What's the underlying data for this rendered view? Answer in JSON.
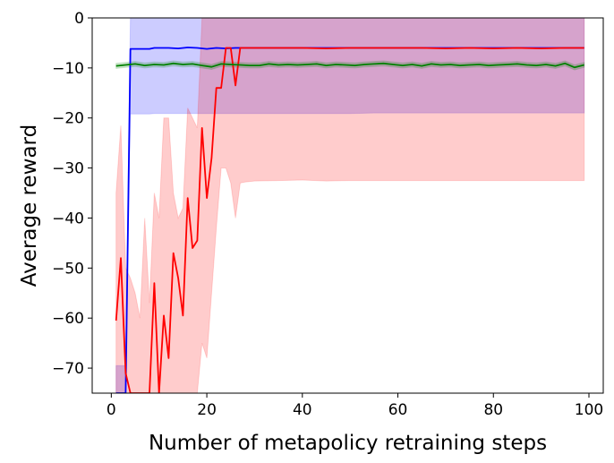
{
  "chart_data": {
    "type": "line",
    "title": "",
    "xlabel": "Number of metapolicy retraining steps",
    "ylabel": "Average reward",
    "xlim": [
      -4,
      103
    ],
    "ylim": [
      -75,
      0
    ],
    "xticks": [
      0,
      20,
      40,
      60,
      80,
      100
    ],
    "yticks": [
      0,
      -10,
      -20,
      -30,
      -40,
      -50,
      -60,
      -70
    ],
    "xtick_labels": [
      "0",
      "20",
      "40",
      "60",
      "80",
      "100"
    ],
    "ytick_labels": [
      "0",
      "−10",
      "−20",
      "−30",
      "−40",
      "−50",
      "−60",
      "−70"
    ],
    "grid": false,
    "legend": "none",
    "series": [
      {
        "color": "#0000ff",
        "band_color": "#0000ff",
        "x": [
          1,
          2,
          3,
          4,
          5,
          6,
          7,
          8,
          9,
          10,
          12,
          14,
          16,
          18,
          20,
          22,
          24,
          26,
          28,
          30,
          35,
          40,
          45,
          50,
          55,
          60,
          65,
          70,
          75,
          80,
          85,
          90,
          95,
          99
        ],
        "mean": [
          -75,
          -75,
          -75,
          -6.2,
          -6.2,
          -6.2,
          -6.2,
          -6.2,
          -6.0,
          -6.0,
          -6.0,
          -6.1,
          -5.9,
          -6.0,
          -6.2,
          -6.0,
          -6.1,
          -6.0,
          -6.0,
          -6.0,
          -6.0,
          -6.0,
          -6.0,
          -6.0,
          -6.0,
          -6.0,
          -6.0,
          -6.0,
          -6.0,
          -6.0,
          -6.0,
          -6.0,
          -6.0,
          -6.0
        ],
        "upper": [
          -69.5,
          -69.5,
          -69.5,
          0,
          0,
          0,
          0,
          0,
          0,
          0,
          0,
          0,
          0,
          0,
          0,
          0,
          0,
          0,
          0,
          0,
          0,
          0,
          0,
          0,
          0,
          0,
          0,
          0,
          0,
          0,
          0,
          0,
          0,
          0
        ],
        "lower": [
          -75,
          -75,
          -75,
          -19.2,
          -19.2,
          -19.2,
          -19.2,
          -19.2,
          -19.1,
          -19.1,
          -19.1,
          -19.1,
          -19.1,
          -19.1,
          -19.1,
          -19.1,
          -19.1,
          -19.1,
          -19.1,
          -19.1,
          -19.1,
          -19.1,
          -19.1,
          -19.1,
          -19.0,
          -19.0,
          -19.0,
          -19.0,
          -19.0,
          -19.0,
          -19.0,
          -19.0,
          -19.0,
          -19.0
        ]
      },
      {
        "color": "#ff0000",
        "band_color": "#ff0000",
        "x": [
          1,
          2,
          3,
          4,
          5,
          6,
          7,
          8,
          9,
          10,
          11,
          12,
          13,
          14,
          15,
          16,
          17,
          18,
          19,
          20,
          21,
          22,
          23,
          24,
          25,
          26,
          27,
          28,
          30,
          35,
          40,
          45,
          50,
          55,
          60,
          65,
          70,
          75,
          80,
          85,
          90,
          95,
          99
        ],
        "mean": [
          -60.5,
          -48,
          -71,
          -75,
          -75,
          -75,
          -75,
          -75,
          -53,
          -75,
          -59.5,
          -68,
          -47,
          -52,
          -59.5,
          -36,
          -46,
          -44.5,
          -22,
          -36,
          -28,
          -14,
          -14,
          -6.0,
          -6.0,
          -13.5,
          -6.0,
          -6.0,
          -6.0,
          -6.0,
          -6.0,
          -6.1,
          -6.0,
          -6.0,
          -6.0,
          -6.0,
          -6.1,
          -6.0,
          -6.1,
          -6.0,
          -6.1,
          -6.0,
          -6.0
        ],
        "upper": [
          -35,
          -21.5,
          -50,
          -52,
          -55,
          -60,
          -40,
          -57,
          -35,
          -40,
          -20,
          -20,
          -35,
          -40,
          -38,
          -18,
          -20,
          -22,
          0,
          0,
          0,
          0,
          0,
          0,
          0,
          0,
          0,
          0,
          0,
          0,
          0,
          0,
          0,
          0,
          0,
          0,
          0,
          0,
          0,
          0,
          0,
          0,
          0
        ],
        "lower": [
          -75,
          -75,
          -75,
          -75,
          -75,
          -75,
          -75,
          -75,
          -75,
          -75,
          -75,
          -75,
          -75,
          -75,
          -75,
          -75,
          -75,
          -75,
          -65,
          -68,
          -55,
          -42,
          -30,
          -30,
          -33,
          -40,
          -33,
          -32.8,
          -32.6,
          -32.5,
          -32.4,
          -32.6,
          -32.5,
          -32.5,
          -32.5,
          -32.5,
          -32.5,
          -32.5,
          -32.5,
          -32.5,
          -32.5,
          -32.5,
          -32.5
        ]
      },
      {
        "color": "#008000",
        "band_color": "#008000",
        "x": [
          1,
          3,
          5,
          7,
          9,
          11,
          13,
          15,
          17,
          19,
          21,
          23,
          25,
          27,
          29,
          31,
          33,
          35,
          37,
          39,
          41,
          43,
          45,
          47,
          49,
          51,
          53,
          55,
          57,
          59,
          61,
          63,
          65,
          67,
          69,
          71,
          73,
          75,
          77,
          79,
          81,
          83,
          85,
          87,
          89,
          91,
          93,
          95,
          97,
          99
        ],
        "mean": [
          -9.6,
          -9.4,
          -9.2,
          -9.5,
          -9.3,
          -9.4,
          -9.1,
          -9.3,
          -9.2,
          -9.5,
          -9.8,
          -9.2,
          -9.3,
          -9.4,
          -9.5,
          -9.5,
          -9.2,
          -9.4,
          -9.3,
          -9.4,
          -9.3,
          -9.2,
          -9.5,
          -9.3,
          -9.4,
          -9.5,
          -9.3,
          -9.2,
          -9.1,
          -9.3,
          -9.5,
          -9.3,
          -9.6,
          -9.2,
          -9.4,
          -9.3,
          -9.5,
          -9.4,
          -9.3,
          -9.5,
          -9.4,
          -9.3,
          -9.2,
          -9.4,
          -9.5,
          -9.3,
          -9.6,
          -9.1,
          -9.9,
          -9.4
        ],
        "upper": [
          -9.1,
          -8.9,
          -8.7,
          -9.0,
          -8.8,
          -8.9,
          -8.6,
          -8.8,
          -8.7,
          -9.0,
          -9.3,
          -8.7,
          -8.8,
          -8.9,
          -9.0,
          -9.0,
          -8.7,
          -8.9,
          -8.8,
          -8.9,
          -8.8,
          -8.7,
          -9.0,
          -8.8,
          -8.9,
          -9.0,
          -8.8,
          -8.7,
          -8.6,
          -8.8,
          -9.0,
          -8.8,
          -9.1,
          -8.7,
          -8.9,
          -8.8,
          -9.0,
          -8.9,
          -8.8,
          -9.0,
          -8.9,
          -8.8,
          -8.7,
          -8.9,
          -9.0,
          -8.8,
          -9.1,
          -8.6,
          -9.4,
          -8.9
        ],
        "lower": [
          -10.1,
          -9.9,
          -9.7,
          -10.0,
          -9.8,
          -9.9,
          -9.6,
          -9.8,
          -9.7,
          -10.0,
          -10.3,
          -9.7,
          -9.8,
          -9.9,
          -10.0,
          -10.0,
          -9.7,
          -9.9,
          -9.8,
          -9.9,
          -9.8,
          -9.7,
          -10.0,
          -9.8,
          -9.9,
          -10.0,
          -9.8,
          -9.7,
          -9.6,
          -9.8,
          -10.0,
          -9.8,
          -10.1,
          -9.7,
          -9.9,
          -9.8,
          -10.0,
          -9.9,
          -9.8,
          -10.0,
          -9.9,
          -9.8,
          -9.7,
          -9.9,
          -10.0,
          -9.8,
          -10.1,
          -9.6,
          -10.4,
          -9.9
        ]
      }
    ]
  }
}
